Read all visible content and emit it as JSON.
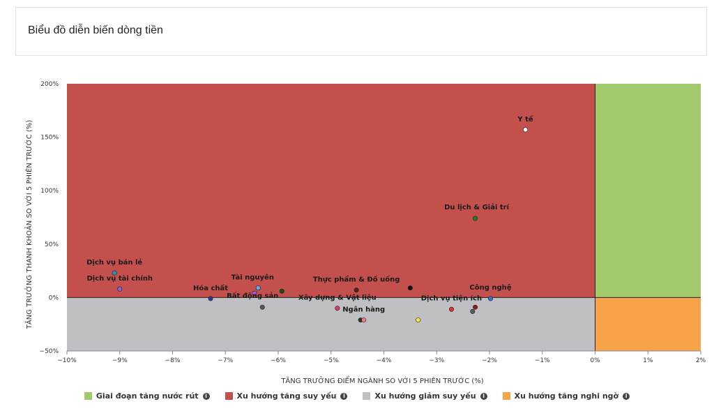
{
  "header": {
    "title": "Biểu đồ diễn biến dòng tiền"
  },
  "chart_data": {
    "type": "scatter",
    "xlabel": "TĂNG TRƯỞNG ĐIỂM NGÀNH SO VỚI 5 PHIÊN TRƯỚC (%)",
    "ylabel": "TĂNG TRƯỞNG THANH KHOẢN SO VỚI 5 PHIÊN TRƯỚC (%)",
    "xlim": [
      -10,
      2
    ],
    "ylim": [
      -50,
      200
    ],
    "x_ticks": [
      "−10%",
      "−9%",
      "−8%",
      "−7%",
      "−6%",
      "−5%",
      "−4%",
      "−3%",
      "−2%",
      "−1%",
      "0%",
      "1%",
      "2%"
    ],
    "y_ticks": [
      "−50%",
      "0%",
      "50%",
      "100%",
      "150%",
      "200%"
    ],
    "quadrants": [
      {
        "name": "Giai đoạn tăng nước rút",
        "color": "#a2c96b"
      },
      {
        "name": "Xu hướng tăng suy yếu",
        "color": "#c4504e"
      },
      {
        "name": "Xu hướng giảm suy yếu",
        "color": "#c0c0c4"
      },
      {
        "name": "Xu hướng tăng nghi ngờ",
        "color": "#f7a34a"
      }
    ],
    "points": [
      {
        "label": "Y tế",
        "x": -1.32,
        "y": 157,
        "color": "#ffffff"
      },
      {
        "label": "Du lịch & Giải trí",
        "x": -2.27,
        "y": 74,
        "color": "#1e7d32"
      },
      {
        "label": "Dịch vụ bán lẻ",
        "x": -9.1,
        "y": 23,
        "color": "#2e8fb0"
      },
      {
        "label": "Dịch vụ tài chính",
        "x": -9.0,
        "y": 8,
        "color": "#7b68ee"
      },
      {
        "label": "Hóa chất",
        "x": -7.28,
        "y": -1,
        "color": "#2f3a8f"
      },
      {
        "label": "Tài nguyên",
        "x": -6.38,
        "y": 9,
        "color": "#5aaef0"
      },
      {
        "label": "Bất động sản",
        "x": -6.3,
        "y": -9,
        "color": "#555555"
      },
      {
        "label": "Thực phẩm & Đồ uống",
        "x": -4.52,
        "y": 7,
        "color": "#5a1f1f"
      },
      {
        "label": "Xây dựng & Vật liệu",
        "x": -4.88,
        "y": -10,
        "color": "#e0386a"
      },
      {
        "label": "Ngân hàng",
        "x": -4.38,
        "y": -21,
        "color": "#f08080"
      },
      {
        "label": "Dịch vụ tiện ích",
        "x": -2.72,
        "y": -11,
        "color": "#e03030"
      },
      {
        "label": "Công nghệ",
        "x": -1.98,
        "y": -1,
        "color": "#3a6fd8"
      }
    ],
    "extra_points": [
      {
        "x": -5.93,
        "y": 6,
        "color": "#1a4d1a"
      },
      {
        "x": -3.5,
        "y": 9,
        "color": "#111111"
      },
      {
        "x": -4.44,
        "y": -21,
        "color": "#333333"
      },
      {
        "x": -3.35,
        "y": -21,
        "color": "#f2f23a"
      },
      {
        "x": -6.45,
        "y": 4,
        "color": "#b05bd0"
      },
      {
        "x": -2.27,
        "y": -9,
        "color": "#8b1a1a"
      },
      {
        "x": -2.32,
        "y": -13,
        "color": "#5a5a5a"
      }
    ]
  }
}
